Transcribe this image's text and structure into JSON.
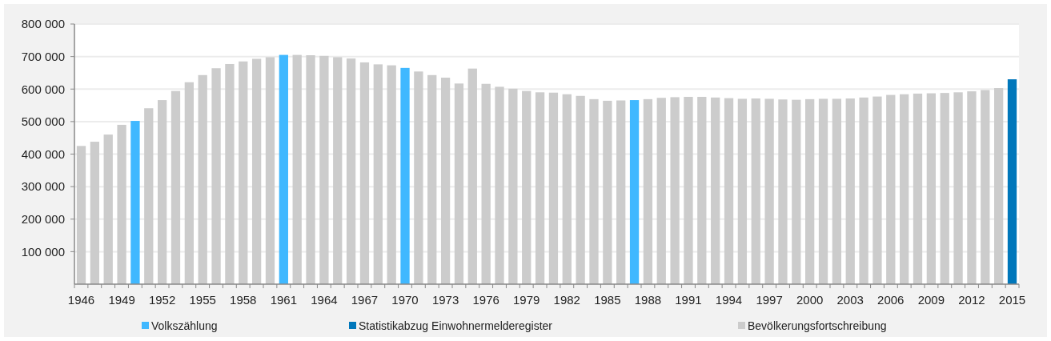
{
  "chart_data": {
    "type": "bar",
    "categories": [
      "1946",
      null,
      null,
      "1949",
      null,
      null,
      "1952",
      null,
      null,
      "1955",
      null,
      null,
      "1958",
      null,
      null,
      "1961",
      null,
      null,
      "1964",
      null,
      null,
      "1967",
      null,
      null,
      "1970",
      null,
      null,
      "1973",
      null,
      null,
      "1976",
      null,
      null,
      "1979",
      null,
      null,
      "1982",
      null,
      null,
      "1985",
      null,
      null,
      "1988",
      null,
      null,
      "1991",
      null,
      null,
      "1994",
      null,
      null,
      "1997",
      null,
      null,
      "2000",
      null,
      null,
      "2003",
      null,
      null,
      "2006",
      null,
      null,
      "2009",
      null,
      null,
      "2012",
      null,
      null,
      "2015"
    ],
    "series": [
      {
        "name": "Volkszählung",
        "color": "#40b8ff",
        "values": [
          null,
          null,
          null,
          null,
          502000,
          null,
          null,
          null,
          null,
          null,
          null,
          null,
          null,
          null,
          null,
          705000,
          null,
          null,
          null,
          null,
          null,
          null,
          null,
          null,
          665000,
          null,
          null,
          null,
          null,
          null,
          null,
          null,
          null,
          null,
          null,
          null,
          null,
          null,
          null,
          null,
          null,
          566000,
          null,
          null,
          null,
          null,
          null,
          null,
          null,
          null,
          null,
          null,
          null,
          null,
          null,
          null,
          null,
          null,
          null,
          null,
          null,
          null,
          null,
          null,
          null,
          null,
          null,
          null,
          null,
          null
        ]
      },
      {
        "name": "Statistikabzug Einwohnermelderegister",
        "color": "#0077bb",
        "values": [
          null,
          null,
          null,
          null,
          null,
          null,
          null,
          null,
          null,
          null,
          null,
          null,
          null,
          null,
          null,
          null,
          null,
          null,
          null,
          null,
          null,
          null,
          null,
          null,
          null,
          null,
          null,
          null,
          null,
          null,
          null,
          null,
          null,
          null,
          null,
          null,
          null,
          null,
          null,
          null,
          null,
          null,
          null,
          null,
          null,
          null,
          null,
          null,
          null,
          null,
          null,
          null,
          null,
          null,
          null,
          null,
          null,
          null,
          null,
          null,
          null,
          null,
          null,
          null,
          null,
          null,
          null,
          null,
          null,
          630000
        ]
      },
      {
        "name": "Bevölkerungsfortschreibung",
        "color": "#cccccc",
        "values": [
          425000,
          438000,
          460000,
          490000,
          null,
          541000,
          566000,
          594000,
          621000,
          643000,
          664000,
          677000,
          685000,
          693000,
          698000,
          null,
          705000,
          704000,
          702000,
          698000,
          694000,
          682000,
          676000,
          673000,
          null,
          654000,
          643000,
          635000,
          617000,
          663000,
          616000,
          607000,
          601000,
          594000,
          590000,
          589000,
          584000,
          579000,
          569000,
          564000,
          565000,
          null,
          569000,
          573000,
          575000,
          576000,
          576000,
          574000,
          572000,
          570000,
          571000,
          570000,
          568000,
          567000,
          569000,
          570000,
          570000,
          571000,
          574000,
          577000,
          582000,
          584000,
          586000,
          587000,
          588000,
          590000,
          593000,
          597000,
          603000,
          null
        ]
      }
    ],
    "ylim": [
      0,
      800000
    ],
    "yticks": [
      {
        "value": 100000,
        "label": "100 000"
      },
      {
        "value": 200000,
        "label": "200 000"
      },
      {
        "value": 300000,
        "label": "300 000"
      },
      {
        "value": 400000,
        "label": "400 000"
      },
      {
        "value": 500000,
        "label": "500 000"
      },
      {
        "value": 600000,
        "label": "600 000"
      },
      {
        "value": 700000,
        "label": "700 000"
      },
      {
        "value": 800000,
        "label": "800 000"
      }
    ],
    "grid": "y",
    "legend": "bottom"
  }
}
